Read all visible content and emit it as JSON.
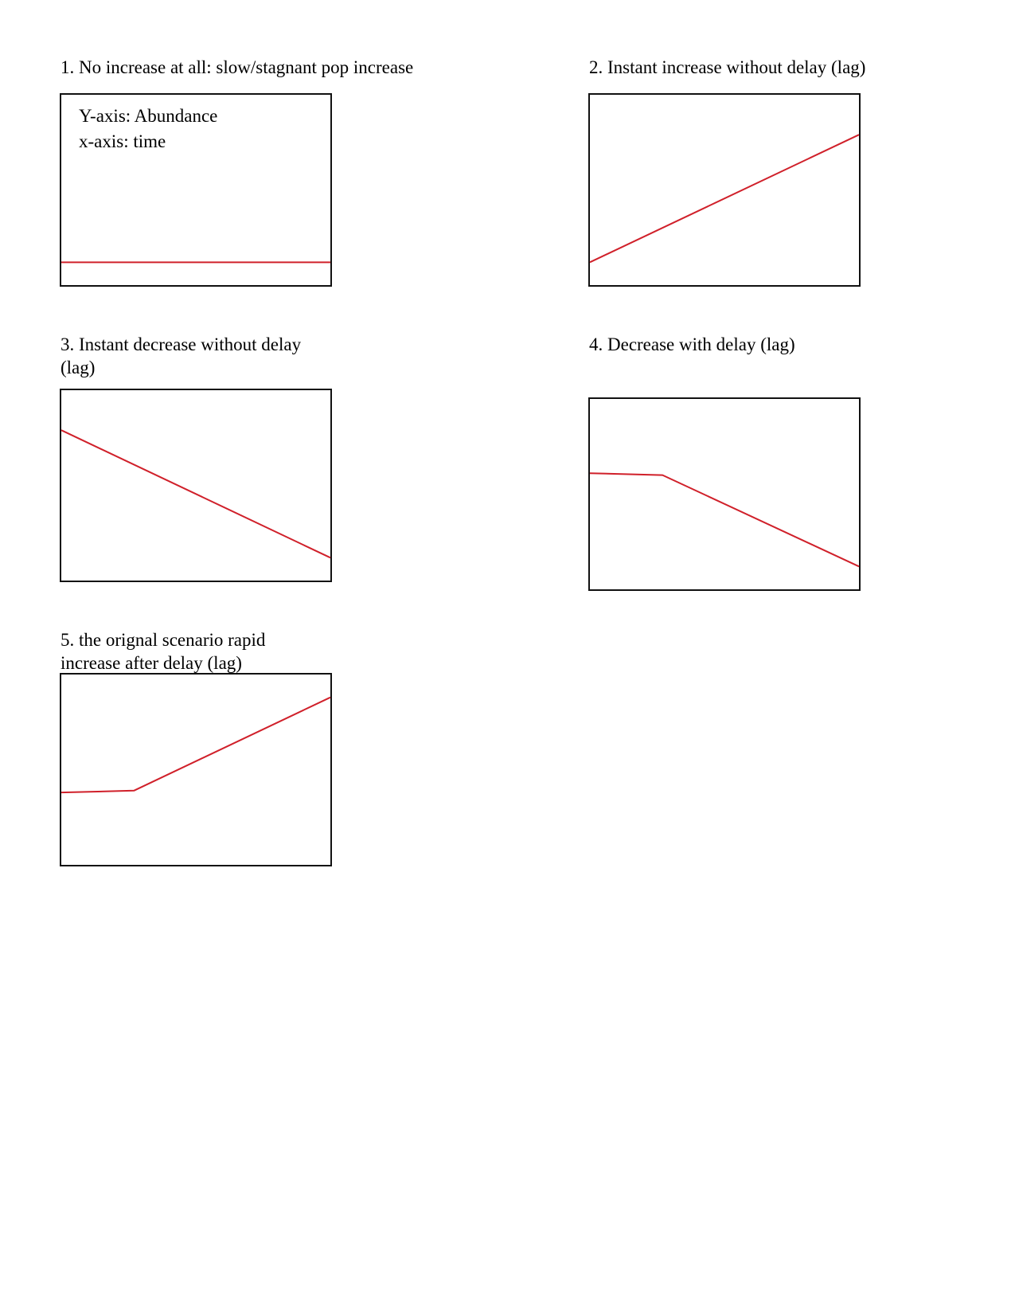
{
  "colors": {
    "frame": "#111111",
    "trend_line": "#d0202a",
    "background": "#ffffff"
  },
  "panels": [
    {
      "caption": "1. No increase at all: slow/stagnant pop increase",
      "notes": [
        "Y-axis: Abundance",
        "x-axis: time"
      ]
    },
    {
      "caption": "2. Instant increase without delay (lag)",
      "notes": []
    },
    {
      "caption": "3. Instant decrease without delay (lag)",
      "notes": []
    },
    {
      "caption": "4. Decrease with delay (lag)",
      "notes": []
    },
    {
      "caption": "5. the orignal scenario rapid increase after delay (lag)",
      "notes": []
    }
  ],
  "chart_data": [
    {
      "type": "line",
      "title": "1. No increase at all: slow/stagnant pop increase",
      "xlabel": "x-axis: time",
      "ylabel": "Y-axis: Abundance",
      "xlim": [
        0,
        100
      ],
      "ylim": [
        0,
        100
      ],
      "grid": false,
      "series": [
        {
          "x": [
            0,
            100
          ],
          "y": [
            12,
            12
          ]
        }
      ]
    },
    {
      "type": "line",
      "title": "2. Instant increase without delay (lag)",
      "xlim": [
        0,
        100
      ],
      "ylim": [
        0,
        100
      ],
      "grid": false,
      "series": [
        {
          "x": [
            0,
            100
          ],
          "y": [
            12,
            79
          ]
        }
      ]
    },
    {
      "type": "line",
      "title": "3. Instant decrease without delay (lag)",
      "xlim": [
        0,
        100
      ],
      "ylim": [
        0,
        100
      ],
      "grid": false,
      "series": [
        {
          "x": [
            0,
            100
          ],
          "y": [
            79,
            12
          ]
        }
      ]
    },
    {
      "type": "line",
      "title": "4. Decrease with delay (lag)",
      "xlim": [
        0,
        100
      ],
      "ylim": [
        0,
        100
      ],
      "grid": false,
      "series": [
        {
          "x": [
            0,
            27,
            100
          ],
          "y": [
            61,
            60,
            12
          ]
        }
      ]
    },
    {
      "type": "line",
      "title": "5. the orignal scenario rapid increase after delay (lag)",
      "xlim": [
        0,
        100
      ],
      "ylim": [
        0,
        100
      ],
      "grid": false,
      "series": [
        {
          "x": [
            0,
            27,
            100
          ],
          "y": [
            38,
            39,
            88
          ]
        }
      ]
    }
  ]
}
